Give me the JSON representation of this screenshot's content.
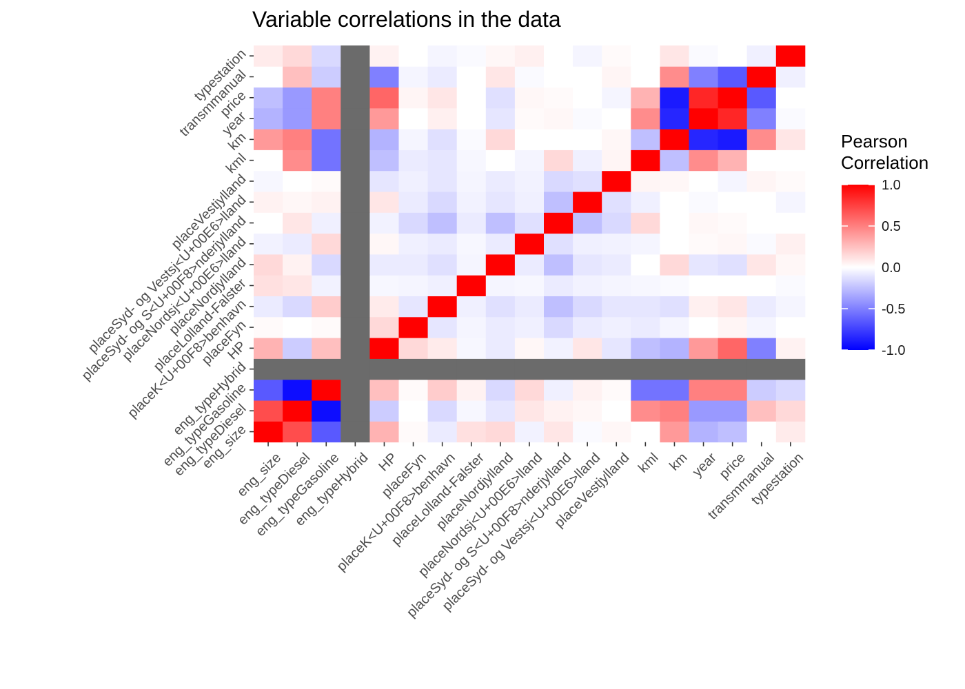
{
  "chart_data": {
    "type": "heatmap",
    "title": "Variable correlations in the data",
    "xlabel": "",
    "ylabel": "",
    "variables": [
      "eng_size",
      "eng_typeDiesel",
      "eng_typeGasoline",
      "eng_typeHybrid",
      "HP",
      "placeFyn",
      "placeK<U+00F8>benhavn",
      "placeLolland-Falster",
      "placeNordjylland",
      "placeNordsj<U+00E6>lland",
      "placeSyd- og S<U+00F8>nderjylland",
      "placeSyd- og Vestsj<U+00E6>lland",
      "placeVestjylland",
      "kml",
      "km",
      "year",
      "price",
      "transmmanual",
      "typestation"
    ],
    "matrix": [
      [
        1.0,
        0.7,
        -0.65,
        null,
        0.3,
        0.02,
        -0.08,
        0.12,
        0.15,
        -0.05,
        0.1,
        -0.02,
        0.03,
        0.0,
        0.4,
        -0.3,
        -0.25,
        0.0,
        0.08
      ],
      [
        0.7,
        1.0,
        -0.95,
        null,
        -0.2,
        0.0,
        -0.15,
        -0.03,
        -0.1,
        0.1,
        0.05,
        0.03,
        0.0,
        0.45,
        0.5,
        -0.4,
        -0.4,
        0.25,
        0.15
      ],
      [
        -0.65,
        -0.95,
        1.0,
        null,
        0.25,
        0.02,
        0.2,
        0.05,
        -0.15,
        0.15,
        -0.06,
        0.05,
        0.02,
        -0.55,
        -0.55,
        0.5,
        0.5,
        -0.2,
        -0.15
      ],
      [
        null,
        null,
        null,
        null,
        null,
        null,
        null,
        null,
        null,
        null,
        null,
        null,
        null,
        null,
        null,
        null,
        null,
        null,
        null
      ],
      [
        0.3,
        -0.2,
        0.25,
        null,
        1.0,
        0.15,
        0.08,
        -0.03,
        -0.08,
        0.03,
        -0.05,
        0.1,
        -0.1,
        -0.25,
        -0.3,
        0.4,
        0.6,
        -0.5,
        0.05
      ],
      [
        0.02,
        0.0,
        0.02,
        null,
        0.15,
        1.0,
        -0.1,
        -0.04,
        -0.08,
        -0.06,
        -0.15,
        -0.08,
        -0.06,
        -0.08,
        -0.04,
        0.0,
        0.04,
        -0.04,
        0.0
      ],
      [
        -0.08,
        -0.15,
        0.2,
        null,
        0.08,
        -0.1,
        1.0,
        -0.06,
        -0.12,
        -0.08,
        -0.25,
        -0.15,
        -0.1,
        -0.1,
        -0.12,
        0.06,
        0.1,
        -0.08,
        -0.04
      ],
      [
        0.12,
        0.1,
        -0.05,
        null,
        -0.03,
        -0.04,
        -0.06,
        1.0,
        -0.04,
        -0.03,
        -0.08,
        -0.05,
        -0.04,
        -0.03,
        -0.02,
        0.0,
        0.0,
        0.0,
        -0.02
      ],
      [
        0.15,
        0.05,
        -0.15,
        null,
        -0.08,
        -0.08,
        -0.12,
        -0.04,
        1.0,
        -0.08,
        -0.25,
        -0.1,
        -0.08,
        0.0,
        0.15,
        -0.1,
        -0.12,
        0.1,
        0.03
      ],
      [
        -0.05,
        -0.08,
        0.15,
        null,
        0.03,
        -0.06,
        -0.08,
        -0.03,
        -0.08,
        1.0,
        -0.12,
        -0.06,
        -0.05,
        -0.04,
        0.0,
        0.02,
        0.03,
        -0.02,
        0.06
      ],
      [
        0.0,
        0.1,
        -0.06,
        null,
        -0.05,
        -0.15,
        -0.25,
        -0.08,
        -0.25,
        -0.12,
        1.0,
        -0.25,
        -0.15,
        0.15,
        0.0,
        0.03,
        0.02,
        0.0,
        0.0
      ],
      [
        0.05,
        0.03,
        0.05,
        null,
        0.1,
        -0.08,
        -0.15,
        -0.05,
        -0.1,
        -0.06,
        -0.25,
        1.0,
        -0.12,
        -0.06,
        0.0,
        -0.02,
        0.0,
        0.0,
        -0.04
      ],
      [
        -0.03,
        0.0,
        0.02,
        null,
        -0.1,
        -0.06,
        -0.1,
        -0.04,
        -0.08,
        -0.05,
        -0.15,
        -0.12,
        1.0,
        0.04,
        0.03,
        0.0,
        -0.04,
        0.04,
        0.02
      ],
      [
        0.0,
        0.45,
        -0.55,
        null,
        -0.25,
        -0.08,
        -0.1,
        -0.03,
        0.0,
        -0.04,
        0.15,
        -0.06,
        0.04,
        1.0,
        -0.25,
        0.45,
        0.3,
        0.0,
        0.0
      ],
      [
        0.4,
        0.5,
        -0.55,
        null,
        -0.3,
        -0.04,
        -0.12,
        -0.02,
        0.15,
        0.0,
        0.0,
        0.0,
        0.03,
        -0.25,
        1.0,
        -0.85,
        -0.9,
        0.45,
        0.1
      ],
      [
        -0.3,
        -0.4,
        0.5,
        null,
        0.4,
        0.0,
        0.06,
        0.0,
        -0.1,
        0.02,
        0.03,
        -0.02,
        0.0,
        0.45,
        -0.85,
        1.0,
        0.85,
        -0.5,
        -0.02
      ],
      [
        -0.25,
        -0.4,
        0.5,
        null,
        0.6,
        0.04,
        0.1,
        0.0,
        -0.12,
        0.03,
        0.02,
        0.0,
        -0.04,
        0.3,
        -0.9,
        0.85,
        1.0,
        -0.65,
        0.0
      ],
      [
        0.0,
        0.25,
        -0.2,
        null,
        -0.5,
        -0.04,
        -0.08,
        0.0,
        0.1,
        -0.02,
        0.0,
        0.0,
        0.04,
        0.0,
        0.45,
        -0.5,
        -0.65,
        1.0,
        -0.06
      ],
      [
        0.08,
        0.15,
        -0.15,
        null,
        0.05,
        0.0,
        -0.04,
        -0.02,
        0.03,
        0.06,
        0.0,
        -0.04,
        0.02,
        0.0,
        0.1,
        -0.02,
        0.0,
        -0.06,
        1.0
      ]
    ],
    "na_color": "#6b6b6b",
    "color_scale": {
      "low": "#0000ff",
      "mid": "#ffffff",
      "high": "#ff0000",
      "limits": [
        -1,
        1
      ]
    },
    "legend": {
      "title_line1": "Pearson",
      "title_line2": "Correlation",
      "position": "right",
      "ticks": [
        1.0,
        0.5,
        0.0,
        -0.5,
        -1.0
      ],
      "tick_labels": [
        "1.0",
        "0.5",
        "0.0",
        "-0.5",
        "-1.0"
      ]
    },
    "grid": true
  }
}
